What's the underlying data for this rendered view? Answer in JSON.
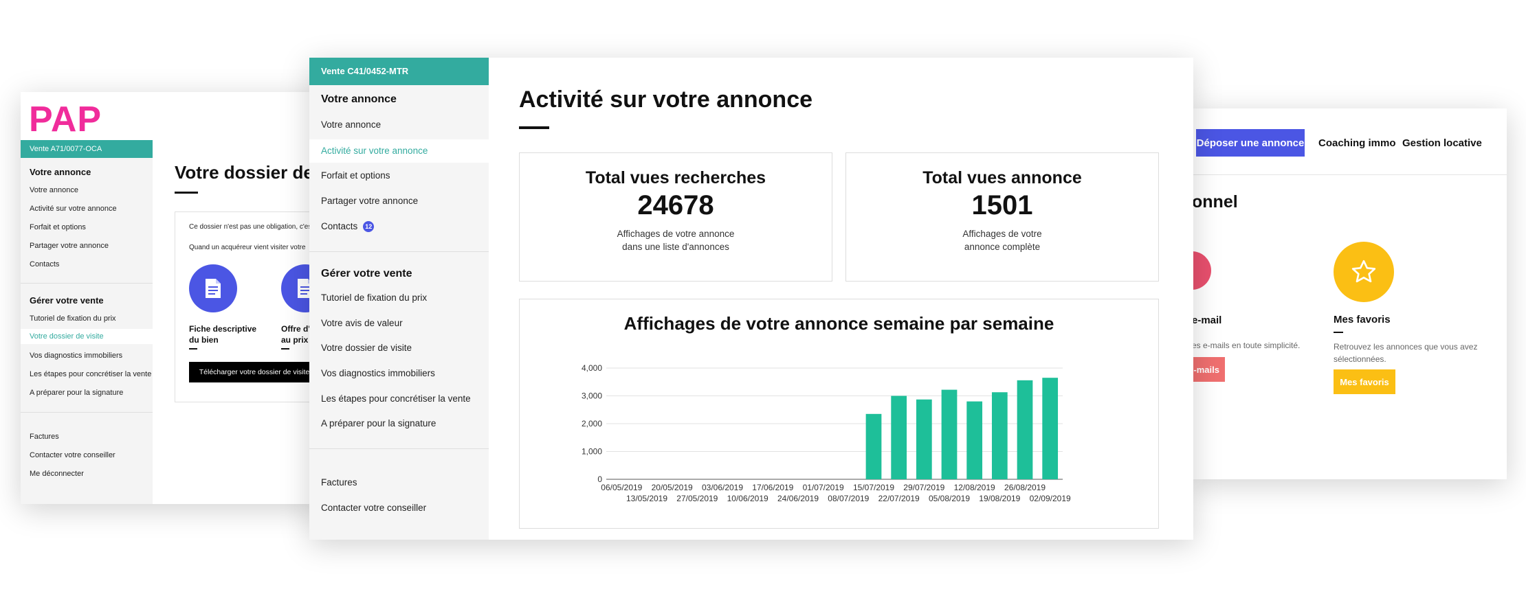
{
  "right_panel": {
    "deposer_button": "Déposer une annonce",
    "nav_coaching": "Coaching immo",
    "nav_gestion": "Gestion locative",
    "section_title_partial": "onnel",
    "email_title_partial": "e-mail",
    "email_desc_partial": "es e-mails en toute simplicité.",
    "email_button_partial": "-mails",
    "favoris_title": "Mes favoris",
    "favoris_desc": "Retrouvez les annonces que vous avez sélectionnées.",
    "favoris_button": "Mes favoris",
    "colors": {
      "primary_button": "#4b56e4",
      "favoris": "#fbbf14",
      "email": "#ef6f6f"
    },
    "icons": {
      "favoris": "star-icon"
    }
  },
  "left_panel": {
    "logo": "PAP",
    "sidebar": {
      "header": "Vente A71/0077-OCA",
      "section1_title": "Votre annonce",
      "section1_items": [
        "Votre annonce",
        "Activité sur votre annonce",
        "Forfait et options",
        "Partager votre annonce",
        "Contacts"
      ],
      "section2_title": "Gérer votre vente",
      "section2_items": [
        "Tutoriel de fixation du prix",
        "Votre dossier de visite",
        "Vos diagnostics immobiliers",
        "Les étapes pour concrétiser la vente",
        "A préparer pour la signature"
      ],
      "section3_items": [
        "Factures",
        "Contacter votre conseiller",
        "Me déconnecter"
      ],
      "active_item": "Votre dossier de visite"
    },
    "main_title": "Votre dossier de",
    "box": {
      "line1": "Ce dossier n'est pas une obligation, c'est",
      "line2": "Quand un acquéreur vient visiter votre",
      "doc1_label_line1": "Fiche descriptive",
      "doc1_label_line2": "du bien",
      "doc2_label_line1": "Offre d'",
      "doc2_label_line2": "au prix",
      "download_button": "Télécharger votre dossier de visite"
    },
    "icons": {
      "doc": "document-icon"
    }
  },
  "main_panel": {
    "sidebar": {
      "header": "Vente C41/0452-MTR",
      "section1_title": "Votre annonce",
      "section1_items": [
        "Votre annonce",
        "Activité sur votre annonce",
        "Forfait et options",
        "Partager votre annonce",
        "Contacts"
      ],
      "contacts_badge": "12",
      "section2_title": "Gérer votre vente",
      "section2_items": [
        "Tutoriel de fixation du prix",
        "Votre avis de valeur",
        "Votre dossier de visite",
        "Vos diagnostics immobiliers",
        "Les étapes pour concrétiser la vente",
        "A préparer pour la signature"
      ],
      "section3_items": [
        "Factures",
        "Contacter votre conseiller"
      ],
      "active_item": "Activité sur votre annonce"
    },
    "page_title": "Activité sur votre annonce",
    "stats": [
      {
        "title": "Total vues recherches",
        "value": "24678",
        "desc_line1": "Affichages de votre annonce",
        "desc_line2": "dans une liste d'annonces"
      },
      {
        "title": "Total vues annonce",
        "value": "1501",
        "desc_line1": "Affichages de votre",
        "desc_line2": "annonce complète"
      }
    ],
    "accent_color": "#33ab9f"
  },
  "chart_data": {
    "type": "bar",
    "title": "Affichages de votre annonce semaine par semaine",
    "categories": [
      "06/05/2019",
      "13/05/2019",
      "20/05/2019",
      "27/05/2019",
      "03/06/2019",
      "10/06/2019",
      "17/06/2019",
      "24/06/2019",
      "01/07/2019",
      "08/07/2019",
      "15/07/2019",
      "22/07/2019",
      "29/07/2019",
      "05/08/2019",
      "12/08/2019",
      "19/08/2019",
      "26/08/2019",
      "02/09/2019"
    ],
    "values": [
      0,
      0,
      0,
      0,
      0,
      0,
      0,
      0,
      0,
      0,
      2350,
      3000,
      2870,
      3220,
      2800,
      3130,
      3560,
      3650
    ],
    "y_ticks": [
      "0",
      "1,000",
      "2,000",
      "3,000",
      "4,000"
    ],
    "ylim": [
      0,
      4000
    ],
    "grid": true,
    "bar_color": "#1ebf99",
    "xlabel": "",
    "ylabel": ""
  }
}
